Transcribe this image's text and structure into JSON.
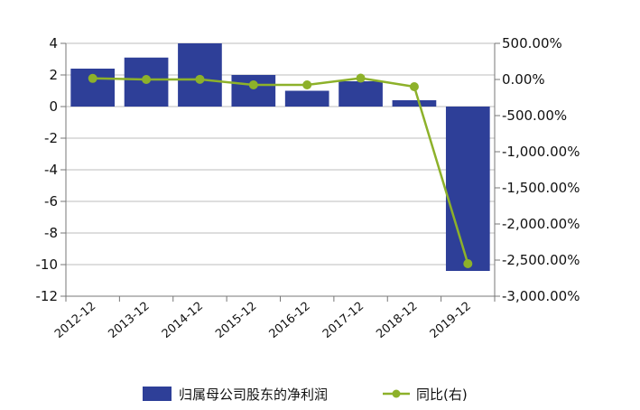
{
  "chart_data": {
    "type": "bar",
    "categories": [
      "2012-12",
      "2013-12",
      "2014-12",
      "2015-12",
      "2016-12",
      "2017-12",
      "2018-12",
      "2019-12"
    ],
    "series": [
      {
        "name": "归属母公司股东的净利润",
        "type": "bar",
        "axis": "left",
        "color": "#2e3f98",
        "values": [
          2.4,
          3.1,
          4.0,
          2.0,
          1.0,
          1.6,
          0.4,
          -10.4
        ]
      },
      {
        "name": "同比(右)",
        "type": "line",
        "axis": "right",
        "color": "#8db12a",
        "values": [
          15,
          0,
          2,
          -75,
          -75,
          18,
          -100,
          -2550
        ]
      }
    ],
    "left_axis": {
      "ylim": [
        -12,
        4
      ],
      "ticks": [
        4,
        2,
        0,
        -2,
        -4,
        -6,
        -8,
        -10,
        -12
      ],
      "tick_labels": [
        "4",
        "2",
        "0",
        "-2",
        "-4",
        "-6",
        "-8",
        "-10",
        "-12"
      ]
    },
    "right_axis": {
      "ylim": [
        -3000,
        500
      ],
      "ticks": [
        500,
        0,
        -500,
        -1000,
        -1500,
        -2000,
        -2500,
        -3000
      ],
      "tick_labels": [
        "500.00%",
        "0.00%",
        "-500.00%",
        "-1,000.00%",
        "-1,500.00%",
        "-2,000.00%",
        "-2,500.00%",
        "-3,000.00%"
      ]
    },
    "grid": true,
    "legend_position": "bottom"
  }
}
